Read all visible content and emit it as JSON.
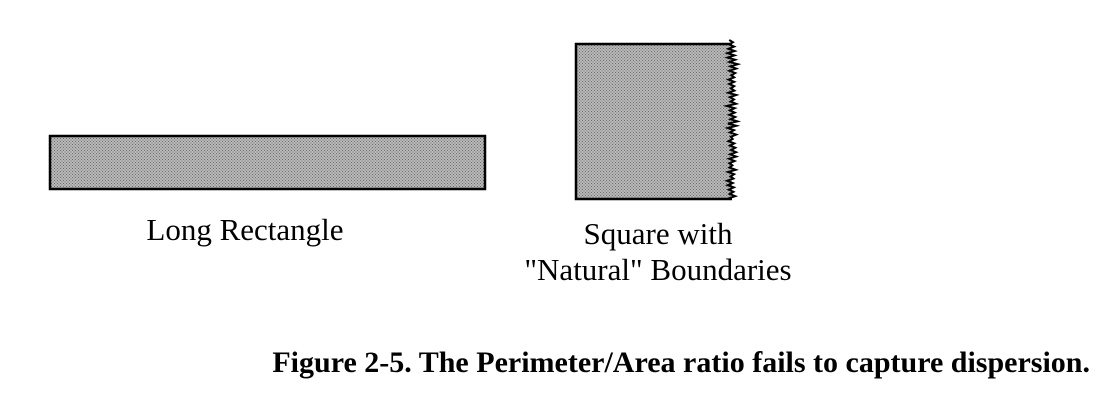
{
  "shapes": {
    "long_rectangle": {
      "label": "Long Rectangle",
      "fill_color": "#9a9a9a",
      "stroke_color": "#000000"
    },
    "square": {
      "label_line1": "Square with",
      "label_line2": "\"Natural\" Boundaries",
      "fill_color": "#9a9a9a",
      "stroke_color": "#000000"
    }
  },
  "caption": "Figure 2-5. The Perimeter/Area ratio fails to capture dispersion."
}
